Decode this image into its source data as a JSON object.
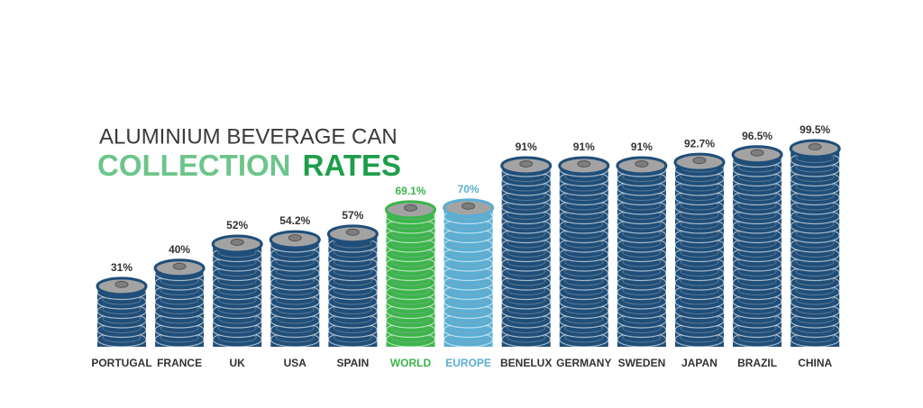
{
  "chart_data": {
    "type": "bar",
    "title": "ALUMINIUM BEVERAGE CAN",
    "subtitle": [
      "COLLECTION",
      "RATES"
    ],
    "subtitle_colors": [
      "#6cc58a",
      "#1e9e4a"
    ],
    "categories": [
      "PORTUGAL",
      "FRANCE",
      "UK",
      "USA",
      "SPAIN",
      "WORLD",
      "EUROPE",
      "BENELUX",
      "GERMANY",
      "SWEDEN",
      "JAPAN",
      "BRAZIL",
      "CHINA"
    ],
    "values": [
      31,
      40,
      52,
      54.2,
      57,
      69.1,
      70,
      91,
      91,
      91,
      92.7,
      96.5,
      99.5
    ],
    "value_labels": [
      "31%",
      "40%",
      "52%",
      "54.2%",
      "57%",
      "69.1%",
      "70%",
      "91%",
      "91%",
      "91%",
      "92.7%",
      "96.5%",
      "99.5%"
    ],
    "color": "#1f4e79",
    "colors": [
      "#1f4e79",
      "#1f4e79",
      "#1f4e79",
      "#1f4e79",
      "#1f4e79",
      "#3cb54a",
      "#5aaed3",
      "#1f4e79",
      "#1f4e79",
      "#1f4e79",
      "#1f4e79",
      "#1f4e79",
      "#1f4e79"
    ]
  }
}
